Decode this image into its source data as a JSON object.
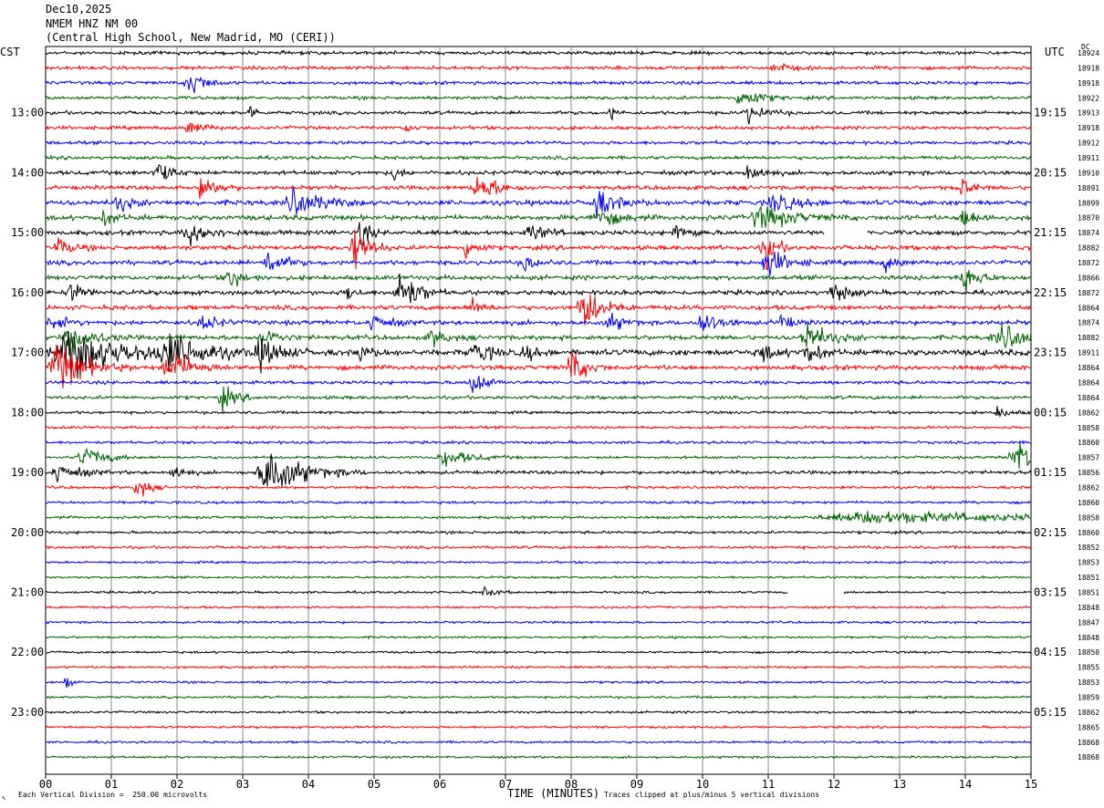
{
  "header": {
    "date": "Dec10,2025",
    "station": "NMEM HNZ NM 00",
    "location": "(Central High School, New Madrid, MO (CERI))"
  },
  "left_tz": "CST",
  "right_tz": "UTC",
  "dc_label": "DC",
  "footer": {
    "scale_note": "Each Vertical Division =  250.00 microvolts",
    "axis_title": "TIME (MINUTES)",
    "clip_note": "Traces clipped at plus/minus 5 vertical divisions",
    "corner_mark": "↖"
  },
  "colors": {
    "trace_cycle": [
      "#000000",
      "#ff0000",
      "#0000ff",
      "#006400"
    ],
    "grid": "#888888",
    "frame": "#000000"
  },
  "chart_data": {
    "type": "helicorder",
    "x_axis": {
      "label": "TIME (MINUTES)",
      "range": [
        0,
        15
      ],
      "ticks": [
        "00",
        "01",
        "02",
        "03",
        "04",
        "05",
        "06",
        "07",
        "08",
        "09",
        "10",
        "11",
        "12",
        "13",
        "14",
        "15"
      ]
    },
    "traces_per_hour": 4,
    "minutes_per_trace": 15,
    "left_hour_labels": [
      "13:00",
      "14:00",
      "15:00",
      "16:00",
      "17:00",
      "18:00",
      "19:00",
      "20:00",
      "21:00",
      "22:00",
      "23:00"
    ],
    "right_hour_labels": [
      "19:15",
      "20:15",
      "21:15",
      "22:15",
      "23:15",
      "00:15",
      "01:15",
      "02:15",
      "03:15",
      "04:15",
      "05:15"
    ],
    "first_labeled_trace_index": 4,
    "dc_offsets": [
      18924,
      18918,
      18918,
      18922,
      18913,
      18918,
      18912,
      18911,
      18910,
      18891,
      18899,
      18870,
      18874,
      18882,
      18872,
      18866,
      18872,
      18864,
      18874,
      18882,
      18911,
      18864,
      18864,
      18864,
      18862,
      18858,
      18860,
      18857,
      18856,
      18862,
      18860,
      18858,
      18860,
      18852,
      18853,
      18851,
      18851,
      18848,
      18847,
      18848,
      18850,
      18855,
      18853,
      18859,
      18862,
      18865,
      18868,
      18868
    ],
    "noise_levels": [
      1.5,
      1.5,
      1.5,
      1.5,
      1.5,
      1.5,
      1.5,
      1.5,
      1.8,
      1.8,
      2.2,
      2.2,
      2.0,
      2.0,
      2.0,
      2.0,
      2.0,
      2.0,
      2.0,
      2.0,
      2.6,
      2.0,
      1.5,
      1.5,
      1.2,
      1.2,
      1.2,
      1.2,
      1.5,
      1.2,
      1.2,
      1.2,
      1.2,
      1.2,
      1.0,
      1.0,
      1.0,
      1.0,
      1.0,
      1.0,
      1.0,
      1.0,
      1.0,
      1.0,
      1.0,
      1.0,
      1.0,
      1.0
    ],
    "gaps": [
      {
        "trace": 12,
        "start_min": 11.85,
        "end_min": 12.5
      },
      {
        "trace": 36,
        "start_min": 11.3,
        "end_min": 12.15
      }
    ],
    "bursts": [
      {
        "trace": 1,
        "minute": 11.1,
        "amplitude": 5,
        "width_min": 0.2
      },
      {
        "trace": 2,
        "minute": 2.2,
        "amplitude": 14,
        "width_min": 0.2
      },
      {
        "trace": 3,
        "minute": 10.6,
        "amplitude": 10,
        "width_min": 0.25
      },
      {
        "trace": 4,
        "minute": 3.1,
        "amplitude": 8,
        "width_min": 0.1
      },
      {
        "trace": 4,
        "minute": 8.6,
        "amplitude": 7,
        "width_min": 0.08
      },
      {
        "trace": 4,
        "minute": 10.7,
        "amplitude": 8,
        "width_min": 0.25
      },
      {
        "trace": 5,
        "minute": 2.2,
        "amplitude": 7,
        "width_min": 0.2
      },
      {
        "trace": 5,
        "minute": 5.5,
        "amplitude": 5,
        "width_min": 0.1
      },
      {
        "trace": 8,
        "minute": 1.7,
        "amplitude": 12,
        "width_min": 0.2
      },
      {
        "trace": 8,
        "minute": 5.3,
        "amplitude": 8,
        "width_min": 0.1
      },
      {
        "trace": 8,
        "minute": 10.7,
        "amplitude": 9,
        "width_min": 0.2
      },
      {
        "trace": 9,
        "minute": 2.4,
        "amplitude": 14,
        "width_min": 0.2
      },
      {
        "trace": 9,
        "minute": 6.6,
        "amplitude": 12,
        "width_min": 0.3
      },
      {
        "trace": 9,
        "minute": 13.95,
        "amplitude": 10,
        "width_min": 0.15
      },
      {
        "trace": 10,
        "minute": 1.1,
        "amplitude": 8,
        "width_min": 0.2
      },
      {
        "trace": 10,
        "minute": 3.8,
        "amplitude": 12,
        "width_min": 0.4
      },
      {
        "trace": 10,
        "minute": 8.4,
        "amplitude": 12,
        "width_min": 0.3
      },
      {
        "trace": 10,
        "minute": 11.1,
        "amplitude": 9,
        "width_min": 0.3
      },
      {
        "trace": 11,
        "minute": 0.9,
        "amplitude": 6,
        "width_min": 0.2
      },
      {
        "trace": 11,
        "minute": 8.4,
        "amplitude": 9,
        "width_min": 0.3
      },
      {
        "trace": 11,
        "minute": 10.9,
        "amplitude": 10,
        "width_min": 0.5
      },
      {
        "trace": 11,
        "minute": 14.0,
        "amplitude": 10,
        "width_min": 0.2
      },
      {
        "trace": 12,
        "minute": 2.2,
        "amplitude": 10,
        "width_min": 0.3
      },
      {
        "trace": 12,
        "minute": 4.8,
        "amplitude": 18,
        "width_min": 0.1
      },
      {
        "trace": 12,
        "minute": 7.4,
        "amplitude": 9,
        "width_min": 0.2
      },
      {
        "trace": 12,
        "minute": 9.6,
        "amplitude": 8,
        "width_min": 0.2
      },
      {
        "trace": 13,
        "minute": 0.2,
        "amplitude": 8,
        "width_min": 0.2
      },
      {
        "trace": 13,
        "minute": 4.7,
        "amplitude": 22,
        "width_min": 0.2
      },
      {
        "trace": 13,
        "minute": 6.4,
        "amplitude": 10,
        "width_min": 0.15
      },
      {
        "trace": 13,
        "minute": 10.95,
        "amplitude": 20,
        "width_min": 0.15
      },
      {
        "trace": 14,
        "minute": 3.4,
        "amplitude": 14,
        "width_min": 0.2
      },
      {
        "trace": 14,
        "minute": 7.3,
        "amplitude": 9,
        "width_min": 0.15
      },
      {
        "trace": 14,
        "minute": 11.0,
        "amplitude": 14,
        "width_min": 0.25
      },
      {
        "trace": 14,
        "minute": 12.8,
        "amplitude": 8,
        "width_min": 0.15
      },
      {
        "trace": 15,
        "minute": 2.8,
        "amplitude": 10,
        "width_min": 0.2
      },
      {
        "trace": 15,
        "minute": 14.0,
        "amplitude": 14,
        "width_min": 0.2
      },
      {
        "trace": 16,
        "minute": 0.4,
        "amplitude": 8,
        "width_min": 0.2
      },
      {
        "trace": 16,
        "minute": 4.6,
        "amplitude": 9,
        "width_min": 0.1
      },
      {
        "trace": 16,
        "minute": 5.4,
        "amplitude": 22,
        "width_min": 0.25
      },
      {
        "trace": 16,
        "minute": 12.0,
        "amplitude": 10,
        "width_min": 0.2
      },
      {
        "trace": 17,
        "minute": 6.5,
        "amplitude": 7,
        "width_min": 0.15
      },
      {
        "trace": 17,
        "minute": 8.2,
        "amplitude": 22,
        "width_min": 0.25
      },
      {
        "trace": 18,
        "minute": 0.1,
        "amplitude": 8,
        "width_min": 0.2
      },
      {
        "trace": 18,
        "minute": 2.4,
        "amplitude": 8,
        "width_min": 0.2
      },
      {
        "trace": 18,
        "minute": 5.0,
        "amplitude": 10,
        "width_min": 0.2
      },
      {
        "trace": 18,
        "minute": 8.6,
        "amplitude": 8,
        "width_min": 0.2
      },
      {
        "trace": 18,
        "minute": 10.0,
        "amplitude": 10,
        "width_min": 0.25
      },
      {
        "trace": 18,
        "minute": 11.2,
        "amplitude": 8,
        "width_min": 0.15
      },
      {
        "trace": 19,
        "minute": 0.4,
        "amplitude": 14,
        "width_min": 0.3
      },
      {
        "trace": 19,
        "minute": 3.3,
        "amplitude": 10,
        "width_min": 0.2
      },
      {
        "trace": 19,
        "minute": 5.9,
        "amplitude": 8,
        "width_min": 0.2
      },
      {
        "trace": 19,
        "minute": 11.6,
        "amplitude": 14,
        "width_min": 0.3
      },
      {
        "trace": 19,
        "minute": 14.6,
        "amplitude": 10,
        "width_min": 0.5
      },
      {
        "trace": 20,
        "minute": 0.4,
        "amplitude": 22,
        "width_min": 0.8
      },
      {
        "trace": 20,
        "minute": 1.9,
        "amplitude": 14,
        "width_min": 0.6
      },
      {
        "trace": 20,
        "minute": 3.3,
        "amplitude": 12,
        "width_min": 0.3
      },
      {
        "trace": 20,
        "minute": 4.8,
        "amplitude": 8,
        "width_min": 0.15
      },
      {
        "trace": 20,
        "minute": 6.55,
        "amplitude": 12,
        "width_min": 0.2
      },
      {
        "trace": 20,
        "minute": 7.3,
        "amplitude": 8,
        "width_min": 0.15
      },
      {
        "trace": 20,
        "minute": 10.9,
        "amplitude": 8,
        "width_min": 0.2
      },
      {
        "trace": 20,
        "minute": 11.6,
        "amplitude": 10,
        "width_min": 0.2
      },
      {
        "trace": 21,
        "minute": 0.2,
        "amplitude": 22,
        "width_min": 0.4
      },
      {
        "trace": 21,
        "minute": 1.9,
        "amplitude": 18,
        "width_min": 0.3
      },
      {
        "trace": 21,
        "minute": 8.0,
        "amplitude": 18,
        "width_min": 0.2
      },
      {
        "trace": 22,
        "minute": 6.5,
        "amplitude": 12,
        "width_min": 0.2
      },
      {
        "trace": 23,
        "minute": 2.7,
        "amplitude": 10,
        "width_min": 0.2
      },
      {
        "trace": 24,
        "minute": 14.5,
        "amplitude": 5,
        "width_min": 0.2
      },
      {
        "trace": 27,
        "minute": 0.6,
        "amplitude": 10,
        "width_min": 0.3
      },
      {
        "trace": 27,
        "minute": 6.1,
        "amplitude": 7,
        "width_min": 0.4
      },
      {
        "trace": 27,
        "minute": 14.8,
        "amplitude": 14,
        "width_min": 0.4
      },
      {
        "trace": 28,
        "minute": 0.2,
        "amplitude": 9,
        "width_min": 0.3
      },
      {
        "trace": 28,
        "minute": 1.95,
        "amplitude": 8,
        "width_min": 0.15
      },
      {
        "trace": 28,
        "minute": 3.4,
        "amplitude": 22,
        "width_min": 0.5
      },
      {
        "trace": 29,
        "minute": 1.4,
        "amplitude": 12,
        "width_min": 0.15
      },
      {
        "trace": 31,
        "minute": 12.7,
        "amplitude": 5,
        "width_min": 2.6
      },
      {
        "trace": 36,
        "minute": 6.7,
        "amplitude": 5,
        "width_min": 0.15
      },
      {
        "trace": 42,
        "minute": 0.3,
        "amplitude": 6,
        "width_min": 0.08
      }
    ]
  }
}
